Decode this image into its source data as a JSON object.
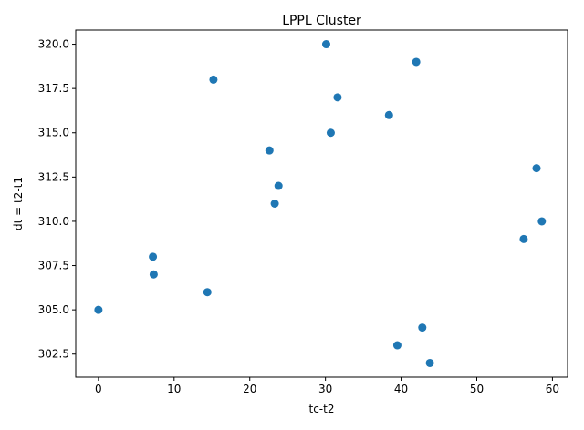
{
  "chart_data": {
    "type": "scatter",
    "title": "LPPL Cluster",
    "xlabel": "tc-t2",
    "ylabel": "dt = t2-t1",
    "xlim": [
      -3,
      62
    ],
    "ylim": [
      301.2,
      320.8
    ],
    "xticks": [
      0,
      10,
      20,
      30,
      40,
      50,
      60
    ],
    "yticks": [
      302.5,
      305.0,
      307.5,
      310.0,
      312.5,
      315.0,
      317.5,
      320.0
    ],
    "xtick_labels": [
      "0",
      "10",
      "20",
      "30",
      "40",
      "50",
      "60"
    ],
    "ytick_labels": [
      "302.5",
      "305.0",
      "307.5",
      "310.0",
      "312.5",
      "315.0",
      "317.5",
      "320.0"
    ],
    "grid": false,
    "marker_color": "#1f77b4",
    "points": [
      {
        "x": 0.0,
        "y": 305
      },
      {
        "x": 7.2,
        "y": 308
      },
      {
        "x": 7.3,
        "y": 307
      },
      {
        "x": 14.4,
        "y": 306
      },
      {
        "x": 15.2,
        "y": 318
      },
      {
        "x": 22.6,
        "y": 314
      },
      {
        "x": 23.3,
        "y": 311
      },
      {
        "x": 23.8,
        "y": 312
      },
      {
        "x": 30.1,
        "y": 320
      },
      {
        "x": 30.7,
        "y": 315
      },
      {
        "x": 31.6,
        "y": 317
      },
      {
        "x": 38.4,
        "y": 316
      },
      {
        "x": 39.5,
        "y": 303
      },
      {
        "x": 42.0,
        "y": 319
      },
      {
        "x": 42.8,
        "y": 304
      },
      {
        "x": 43.8,
        "y": 302
      },
      {
        "x": 56.2,
        "y": 309
      },
      {
        "x": 57.9,
        "y": 313
      },
      {
        "x": 58.6,
        "y": 310
      }
    ]
  }
}
